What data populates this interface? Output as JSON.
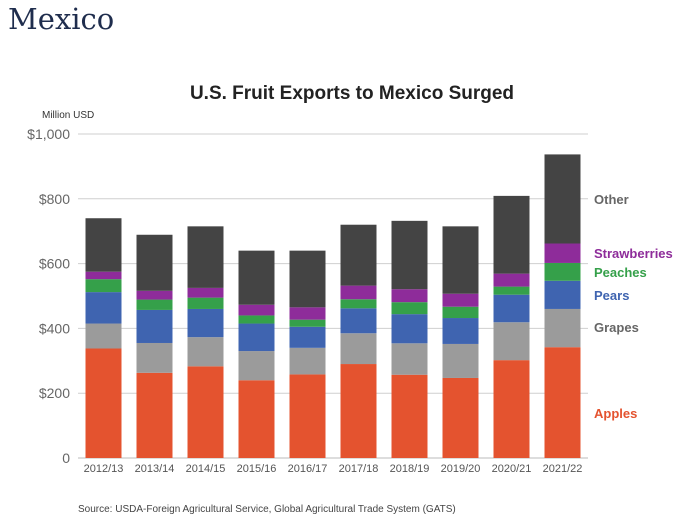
{
  "page": {
    "heading": "Mexico"
  },
  "chart_data": {
    "type": "bar",
    "stacked": true,
    "title": "U.S. Fruit Exports to Mexico Surged",
    "ylabel": "Million USD",
    "xlabel": "",
    "source": "Source: USDA-Foreign Agricultural Service, Global Agricultural Trade System (GATS)",
    "ylim": [
      0,
      1000
    ],
    "yticks": [
      {
        "value": 0,
        "label": "0"
      },
      {
        "value": 200,
        "label": "$200"
      },
      {
        "value": 400,
        "label": "$400"
      },
      {
        "value": 600,
        "label": "$600"
      },
      {
        "value": 800,
        "label": "$800"
      },
      {
        "value": 1000,
        "label": "$1,000"
      }
    ],
    "grid": true,
    "legend_placement": "right, inline beside last bar",
    "categories": [
      "2012/13",
      "2013/14",
      "2014/15",
      "2015/16",
      "2016/17",
      "2017/18",
      "2018/19",
      "2019/20",
      "2020/21",
      "2021/22"
    ],
    "series": [
      {
        "name": "Apples",
        "color": "#e4532f",
        "values": [
          338,
          263,
          283,
          240,
          258,
          290,
          257,
          247,
          302,
          342
        ]
      },
      {
        "name": "Grapes",
        "color": "#9b9b9b",
        "values": [
          77,
          92,
          90,
          90,
          82,
          95,
          97,
          105,
          117,
          118
        ]
      },
      {
        "name": "Pears",
        "color": "#3f64b0",
        "values": [
          97,
          102,
          87,
          85,
          65,
          77,
          90,
          80,
          85,
          87
        ]
      },
      {
        "name": "Peaches",
        "color": "#35a04a",
        "values": [
          40,
          32,
          35,
          25,
          22,
          28,
          37,
          35,
          25,
          55
        ]
      },
      {
        "name": "Strawberries",
        "color": "#8e2c9a",
        "values": [
          23,
          27,
          30,
          33,
          38,
          42,
          40,
          40,
          40,
          60
        ]
      },
      {
        "name": "Other",
        "color": "#444444",
        "values": [
          165,
          173,
          190,
          167,
          175,
          188,
          211,
          208,
          240,
          275
        ]
      }
    ]
  }
}
